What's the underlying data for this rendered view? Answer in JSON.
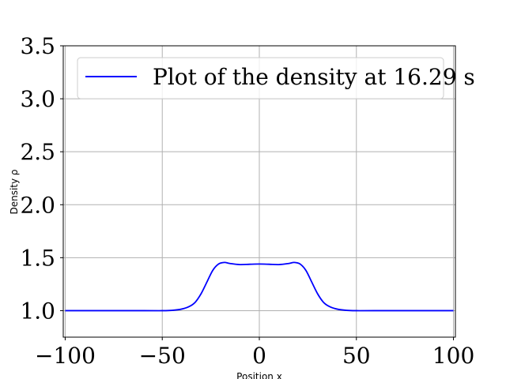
{
  "chart_data": {
    "type": "line",
    "xlabel": "Position x",
    "ylabel": "Density ρ",
    "xlim": [
      -101,
      101
    ],
    "ylim": [
      0.75,
      3.5
    ],
    "xticks": [
      -100,
      -50,
      0,
      50,
      100
    ],
    "xtick_labels": [
      "−100",
      "−50",
      "0",
      "50",
      "100"
    ],
    "yticks": [
      1.0,
      1.5,
      2.0,
      2.5,
      3.0,
      3.5
    ],
    "ytick_labels": [
      "1.0",
      "1.5",
      "2.0",
      "2.5",
      "3.0",
      "3.5"
    ],
    "grid": true,
    "legend": {
      "position": "top",
      "entries": [
        "Plot of the density at 16.29 s"
      ]
    },
    "series": [
      {
        "name": "Plot of the density at 16.29 s",
        "color": "#0000ff",
        "x": [
          -100,
          -60,
          -50,
          -45,
          -40,
          -36,
          -33,
          -30,
          -27,
          -24,
          -21,
          -18,
          -15,
          -10,
          -5,
          0,
          5,
          10,
          15,
          18,
          21,
          24,
          27,
          30,
          33,
          36,
          40,
          45,
          50,
          60,
          100
        ],
        "y": [
          1.0,
          1.0,
          1.0,
          1.003,
          1.015,
          1.04,
          1.08,
          1.16,
          1.27,
          1.38,
          1.44,
          1.455,
          1.445,
          1.435,
          1.438,
          1.44,
          1.438,
          1.435,
          1.445,
          1.455,
          1.44,
          1.38,
          1.27,
          1.16,
          1.08,
          1.04,
          1.015,
          1.003,
          1.0,
          1.0,
          1.0
        ]
      }
    ]
  }
}
